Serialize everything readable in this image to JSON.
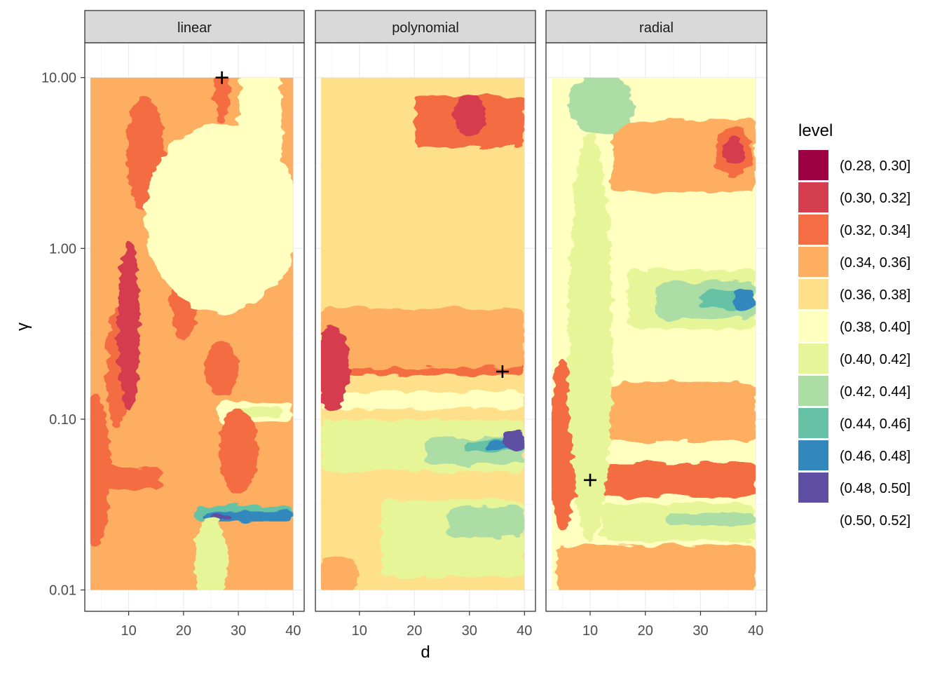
{
  "chart_data": {
    "type": "heatmap",
    "subtype": "filled-contour, faceted",
    "xlabel": "d",
    "ylabel": "γ",
    "x_range": [
      2,
      42
    ],
    "x_ticks": [
      10,
      20,
      30,
      40
    ],
    "x_tick_labels": [
      "10",
      "20",
      "30",
      "40"
    ],
    "y_scale": "log10",
    "y_range": [
      0.0075,
      16
    ],
    "y_ticks": [
      0.01,
      0.1,
      1,
      10
    ],
    "y_tick_labels": [
      "0.01",
      "0.10",
      "1.00",
      "10.00"
    ],
    "grid": true,
    "legend": {
      "title": "level",
      "position": "right",
      "entries": [
        {
          "label": "(0.28, 0.30]",
          "color": "#9E0142"
        },
        {
          "label": "(0.30, 0.32]",
          "color": "#D53E4F"
        },
        {
          "label": "(0.32, 0.34]",
          "color": "#F46D43"
        },
        {
          "label": "(0.34, 0.36]",
          "color": "#FDAE61"
        },
        {
          "label": "(0.36, 0.38]",
          "color": "#FEE08B"
        },
        {
          "label": "(0.38, 0.40]",
          "color": "#FFFFBF"
        },
        {
          "label": "(0.40, 0.42]",
          "color": "#E6F598"
        },
        {
          "label": "(0.42, 0.44]",
          "color": "#ABDDA4"
        },
        {
          "label": "(0.44, 0.46]",
          "color": "#66C2A5"
        },
        {
          "label": "(0.46, 0.48]",
          "color": "#3288BD"
        },
        {
          "label": "(0.48, 0.50]",
          "color": "#5E4FA2"
        },
        {
          "label": "(0.50, 0.52]",
          "color": "#FFFFFF"
        }
      ]
    },
    "data_extent": {
      "x": [
        3,
        40
      ],
      "y": [
        0.01,
        10
      ]
    },
    "facets": [
      {
        "name": "linear",
        "base_level": 3,
        "minimum": {
          "x": 27,
          "y": 10
        },
        "bands": [
          {
            "y": 0.045,
            "w": 0.13,
            "level": 2,
            "x": [
              3,
              16
            ]
          },
          {
            "y": 0.028,
            "w": 0.09,
            "level": 8,
            "x": [
              22,
              40
            ]
          },
          {
            "y": 0.027,
            "w": 0.06,
            "level": 9,
            "x": [
              24,
              40
            ]
          },
          {
            "y": 0.027,
            "w": 0.03,
            "level": 10,
            "x": [
              25,
              29
            ]
          },
          {
            "y": 0.11,
            "w": 0.12,
            "level": 5,
            "x": [
              26,
              40
            ]
          },
          {
            "y": 0.11,
            "w": 0.06,
            "level": 6,
            "x": [
              30,
              38
            ]
          }
        ],
        "blobs": [
          {
            "x": 4,
            "y": 0.05,
            "rx": 2.5,
            "ry": 0.45,
            "level": 2
          },
          {
            "x": 8,
            "y": 0.2,
            "rx": 2,
            "ry": 0.35,
            "level": 2
          },
          {
            "x": 13,
            "y": 3.6,
            "rx": 2,
            "ry": 0.2,
            "level": 1
          },
          {
            "x": 13,
            "y": 3.6,
            "rx": 3.5,
            "ry": 0.33,
            "level": 2
          },
          {
            "x": 10,
            "y": 0.35,
            "rx": 2,
            "ry": 0.5,
            "level": 1
          },
          {
            "x": 20,
            "y": 0.48,
            "rx": 1.2,
            "ry": 0.12,
            "level": 1
          },
          {
            "x": 20,
            "y": 0.48,
            "rx": 2.5,
            "ry": 0.22,
            "level": 2
          },
          {
            "x": 27,
            "y": 9,
            "rx": 1.5,
            "ry": 0.22,
            "level": 2
          },
          {
            "x": 30,
            "y": 0.065,
            "rx": 3.5,
            "ry": 0.25,
            "level": 2
          },
          {
            "x": 27,
            "y": 0.2,
            "rx": 3,
            "ry": 0.16,
            "level": 2
          },
          {
            "x": 27,
            "y": 1.5,
            "rx": 14,
            "ry": 0.55,
            "level": 5
          },
          {
            "x": 34,
            "y": 5.0,
            "rx": 4,
            "ry": 0.6,
            "level": 5
          },
          {
            "x": 25,
            "y": 0.015,
            "rx": 3,
            "ry": 0.25,
            "level": 6
          }
        ]
      },
      {
        "name": "polynomial",
        "base_level": 4,
        "minimum": {
          "x": 36,
          "y": 0.19
        },
        "bands": [
          {
            "y": 0.2,
            "w": 0.09,
            "level": 2,
            "x": [
              3,
              40
            ]
          },
          {
            "y": 5.5,
            "w": 0.3,
            "level": 2,
            "x": [
              20,
              40
            ]
          },
          {
            "y": 0.3,
            "w": 0.35,
            "level": 3,
            "x": [
              3,
              40
            ]
          },
          {
            "y": 0.07,
            "w": 0.3,
            "level": 6,
            "x": [
              3,
              40
            ]
          },
          {
            "y": 0.065,
            "w": 0.16,
            "level": 7,
            "x": [
              22,
              40
            ]
          },
          {
            "y": 0.07,
            "w": 0.06,
            "level": 8,
            "x": [
              29,
              40
            ]
          },
          {
            "y": 0.07,
            "w": 0.035,
            "level": 9,
            "x": [
              33,
              40
            ]
          },
          {
            "y": 0.13,
            "w": 0.1,
            "level": 5,
            "x": [
              3,
              40
            ]
          },
          {
            "y": 0.02,
            "w": 0.45,
            "level": 6,
            "x": [
              14,
              40
            ]
          },
          {
            "y": 0.025,
            "w": 0.18,
            "level": 7,
            "x": [
              26,
              40
            ]
          }
        ],
        "blobs": [
          {
            "x": 5,
            "y": 0.2,
            "rx": 3,
            "ry": 0.25,
            "level": 1
          },
          {
            "x": 38,
            "y": 0.075,
            "rx": 2,
            "ry": 0.07,
            "level": 10
          },
          {
            "x": 30,
            "y": 6.0,
            "rx": 3,
            "ry": 0.12,
            "level": 1
          },
          {
            "x": 10,
            "y": 2.0,
            "rx": 6,
            "ry": 0.5,
            "level": 4
          },
          {
            "x": 22,
            "y": 1.2,
            "rx": 7,
            "ry": 0.35,
            "level": 4
          },
          {
            "x": 6,
            "y": 0.012,
            "rx": 4,
            "ry": 0.12,
            "level": 3
          }
        ]
      },
      {
        "name": "radial",
        "base_level": 5,
        "minimum": {
          "x": 10,
          "y": 0.044
        },
        "bands": [
          {
            "y": 0.044,
            "w": 0.1,
            "level": 1,
            "x": [
              4,
              40
            ]
          },
          {
            "y": 0.044,
            "w": 0.2,
            "level": 2,
            "x": [
              4,
              40
            ]
          },
          {
            "y": 0.025,
            "w": 0.22,
            "level": 6,
            "x": [
              12,
              40
            ]
          },
          {
            "y": 0.026,
            "w": 0.07,
            "level": 7,
            "x": [
              24,
              40
            ]
          },
          {
            "y": 0.5,
            "w": 0.35,
            "level": 6,
            "x": [
              17,
              40
            ]
          },
          {
            "y": 0.5,
            "w": 0.22,
            "level": 7,
            "x": [
              22,
              40
            ]
          },
          {
            "y": 0.5,
            "w": 0.1,
            "level": 8,
            "x": [
              30,
              40
            ]
          },
          {
            "y": 3.5,
            "w": 0.42,
            "level": 3,
            "x": [
              14,
              40
            ]
          },
          {
            "y": 0.11,
            "w": 0.35,
            "level": 3,
            "x": [
              8,
              40
            ]
          },
          {
            "y": 0.013,
            "w": 0.3,
            "level": 3,
            "x": [
              4,
              40
            ]
          }
        ],
        "blobs": [
          {
            "x": 5,
            "y": 0.07,
            "rx": 2.5,
            "ry": 0.5,
            "level": 2
          },
          {
            "x": 36,
            "y": 3.7,
            "rx": 3.5,
            "ry": 0.14,
            "level": 2
          },
          {
            "x": 36,
            "y": 3.7,
            "rx": 2,
            "ry": 0.08,
            "level": 1
          },
          {
            "x": 10,
            "y": 0.044,
            "rx": 2,
            "ry": 0.07,
            "level": 0
          },
          {
            "x": 10,
            "y": 0.3,
            "rx": 4,
            "ry": 1.2,
            "level": 6
          },
          {
            "x": 38,
            "y": 0.5,
            "rx": 2,
            "ry": 0.07,
            "level": 9
          },
          {
            "x": 12,
            "y": 7.0,
            "rx": 6,
            "ry": 0.18,
            "level": 7
          }
        ]
      }
    ]
  }
}
